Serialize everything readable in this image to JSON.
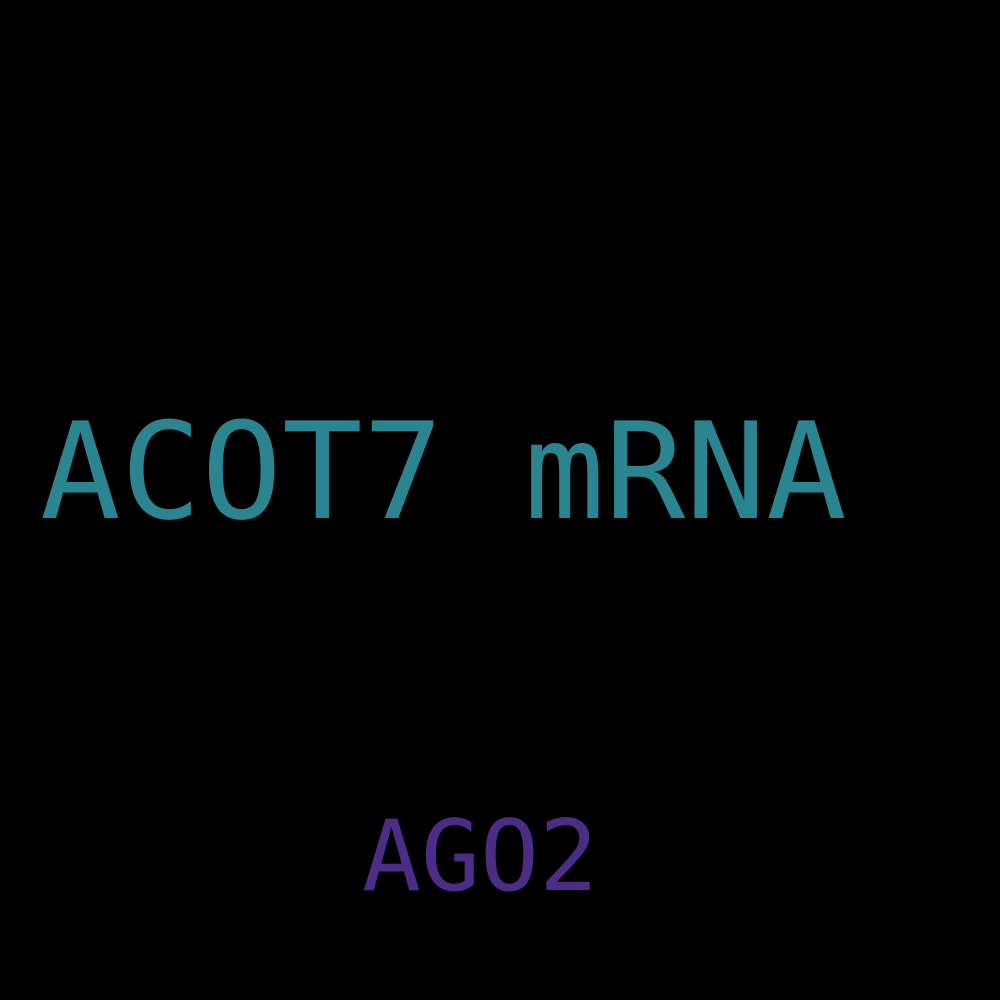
{
  "words": [
    {
      "text": "ACOT7 mRNA",
      "color": "#2a8591"
    },
    {
      "text": "AGO2",
      "color": "#4b2d86"
    }
  ],
  "background_color": "#000000"
}
